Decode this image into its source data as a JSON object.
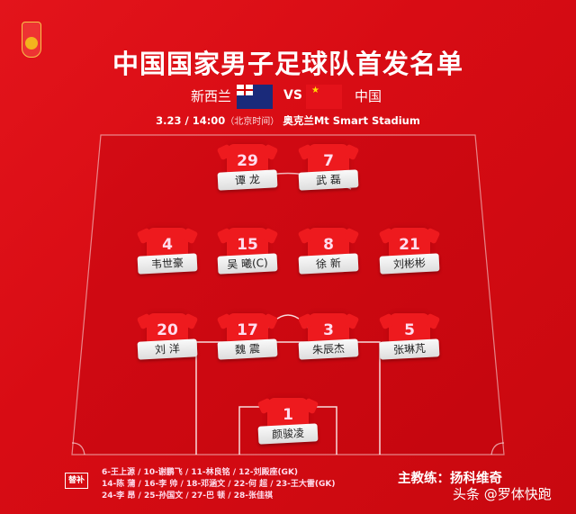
{
  "title": "中国国家男子足球队首发名单",
  "match": {
    "home": "新西兰",
    "vs": "VS",
    "away": "中国",
    "date_time": "3.23 / 14:00",
    "timezone": "（北京时间）",
    "venue": "奥克兰Mt Smart Stadium"
  },
  "colors": {
    "background": "#d80c14",
    "shirt": "#ee1a1e",
    "name_label": "#eeeeee"
  },
  "players": [
    {
      "number": "29",
      "name": "谭 龙"
    },
    {
      "number": "7",
      "name": "武 磊"
    },
    {
      "number": "4",
      "name": "韦世豪"
    },
    {
      "number": "15",
      "name": "吴 曦(C)"
    },
    {
      "number": "8",
      "name": "徐 新"
    },
    {
      "number": "21",
      "name": "刘彬彬"
    },
    {
      "number": "20",
      "name": "刘 洋"
    },
    {
      "number": "17",
      "name": "魏 震"
    },
    {
      "number": "3",
      "name": "朱辰杰"
    },
    {
      "number": "5",
      "name": "张琳芃"
    },
    {
      "number": "1",
      "name": "颜骏凌"
    }
  ],
  "substitutes": {
    "label": "替补",
    "lines": [
      "6-王上源 / 10-谢鹏飞 / 11-林良铭 / 12-刘殿座(GK)",
      "14-陈 蒲 / 16-李 帅 / 18-邓涵文 / 22-何 超 / 23-王大雷(GK)",
      "24-李 昂 / 25-孙国文 / 27-巴 顿 / 28-张佳祺"
    ]
  },
  "coach": "主教练：扬科维奇",
  "watermark": "头条 @罗体快跑"
}
